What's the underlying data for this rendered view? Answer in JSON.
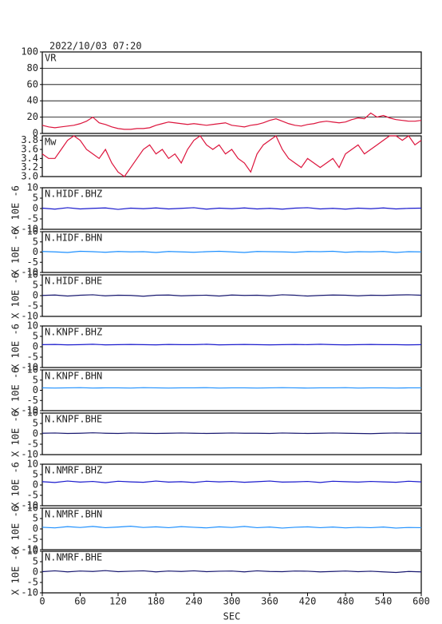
{
  "chart_data": [
    {
      "type": "line",
      "title": "2022/10/03 07:20",
      "x": [
        0,
        10,
        20,
        30,
        40,
        50,
        60,
        70,
        80,
        90,
        100,
        110,
        120,
        130,
        140,
        150,
        160,
        170,
        180,
        190,
        200,
        210,
        220,
        230,
        240,
        250,
        260,
        270,
        280,
        290,
        300,
        310,
        320,
        330,
        340,
        350,
        360,
        370,
        380,
        390,
        400,
        410,
        420,
        430,
        440,
        450,
        460,
        470,
        480,
        490,
        500,
        510,
        520,
        530,
        540,
        550,
        560,
        570,
        580,
        590,
        600
      ],
      "series": [
        {
          "name": "VR",
          "color": "#dc143c",
          "values": [
            10,
            8,
            7,
            8,
            9,
            10,
            12,
            15,
            20,
            13,
            11,
            8,
            6,
            5,
            5,
            6,
            6,
            7,
            10,
            12,
            14,
            13,
            12,
            11,
            12,
            11,
            10,
            11,
            12,
            13,
            10,
            9,
            8,
            10,
            11,
            13,
            16,
            18,
            15,
            12,
            10,
            9,
            11,
            12,
            14,
            15,
            14,
            13,
            14,
            17,
            19,
            18,
            25,
            20,
            22,
            19,
            17,
            16,
            15,
            15,
            16
          ]
        }
      ],
      "xlim": [
        0,
        600
      ],
      "ylim": [
        0,
        100
      ],
      "yticks": [
        0,
        20,
        40,
        60,
        80,
        100
      ],
      "grid": true
    },
    {
      "type": "line",
      "x": [
        0,
        10,
        20,
        30,
        40,
        50,
        60,
        70,
        80,
        90,
        100,
        110,
        120,
        130,
        140,
        150,
        160,
        170,
        180,
        190,
        200,
        210,
        220,
        230,
        240,
        250,
        260,
        270,
        280,
        290,
        300,
        310,
        320,
        330,
        340,
        350,
        360,
        370,
        380,
        390,
        400,
        410,
        420,
        430,
        440,
        450,
        460,
        470,
        480,
        490,
        500,
        510,
        520,
        530,
        540,
        550,
        560,
        570,
        580,
        590,
        600
      ],
      "series": [
        {
          "name": "Mw",
          "color": "#dc143c",
          "values": [
            3.5,
            3.4,
            3.4,
            3.6,
            3.8,
            3.9,
            3.8,
            3.6,
            3.5,
            3.4,
            3.6,
            3.3,
            3.1,
            3.0,
            3.2,
            3.4,
            3.6,
            3.7,
            3.5,
            3.6,
            3.4,
            3.5,
            3.3,
            3.6,
            3.8,
            3.9,
            3.7,
            3.6,
            3.7,
            3.5,
            3.6,
            3.4,
            3.3,
            3.1,
            3.5,
            3.7,
            3.8,
            3.9,
            3.6,
            3.4,
            3.3,
            3.2,
            3.4,
            3.3,
            3.2,
            3.3,
            3.4,
            3.2,
            3.5,
            3.6,
            3.7,
            3.5,
            3.6,
            3.7,
            3.8,
            3.9,
            3.9,
            3.8,
            3.9,
            3.7,
            3.8
          ]
        }
      ],
      "xlim": [
        0,
        600
      ],
      "ylim": [
        3.0,
        3.9
      ],
      "yticks": [
        {
          "value": 3,
          "label": "3.0"
        },
        3.2,
        3.4,
        3.6,
        3.8
      ]
    },
    {
      "type": "line",
      "ylabel": "X 10E -6",
      "x": [
        0,
        20,
        40,
        60,
        80,
        100,
        120,
        140,
        160,
        180,
        200,
        220,
        240,
        260,
        280,
        300,
        320,
        340,
        360,
        380,
        400,
        420,
        440,
        460,
        480,
        500,
        520,
        540,
        560,
        580,
        600
      ],
      "series": [
        {
          "name": "N.HIDF.BHZ",
          "color": "#1a1acd",
          "values": [
            0.2,
            -0.3,
            0.4,
            -0.2,
            0.1,
            0.3,
            -0.4,
            0.2,
            -0.1,
            0.3,
            -0.2,
            0.1,
            0.4,
            -0.3,
            0.2,
            -0.1,
            0.3,
            -0.2,
            0.1,
            -0.3,
            0.2,
            0.4,
            -0.2,
            0.1,
            -0.3,
            0.2,
            -0.1,
            0.3,
            -0.2,
            0.1,
            0.2
          ]
        }
      ],
      "xlim": [
        0,
        600
      ],
      "ylim": [
        -10,
        10
      ],
      "yticks": [
        -10,
        -5,
        0,
        5,
        10
      ]
    },
    {
      "type": "line",
      "ylabel": "X 10E -6",
      "x": [
        0,
        20,
        40,
        60,
        80,
        100,
        120,
        140,
        160,
        180,
        200,
        220,
        240,
        260,
        280,
        300,
        320,
        340,
        360,
        380,
        400,
        420,
        440,
        460,
        480,
        500,
        520,
        540,
        560,
        580,
        600
      ],
      "series": [
        {
          "name": "N.HIDF.BHN",
          "color": "#1e90ff",
          "values": [
            0.3,
            0.1,
            -0.2,
            0.4,
            0.2,
            -0.1,
            0.3,
            0.1,
            0.2,
            -0.2,
            0.3,
            0.1,
            -0.1,
            0.2,
            0.4,
            0.1,
            -0.2,
            0.3,
            0.2,
            0.1,
            -0.1,
            0.3,
            0.2,
            0.4,
            -0.1,
            0.2,
            0.1,
            0.3,
            -0.2,
            0.2,
            0.1
          ]
        }
      ],
      "xlim": [
        0,
        600
      ],
      "ylim": [
        -10,
        10
      ],
      "yticks": [
        -10,
        -5,
        0,
        5,
        10
      ]
    },
    {
      "type": "line",
      "ylabel": "X 10E -6",
      "x": [
        0,
        20,
        40,
        60,
        80,
        100,
        120,
        140,
        160,
        180,
        200,
        220,
        240,
        260,
        280,
        300,
        320,
        340,
        360,
        380,
        400,
        420,
        440,
        460,
        480,
        500,
        520,
        540,
        560,
        580,
        600
      ],
      "series": [
        {
          "name": "N.HIDF.BHE",
          "color": "#191970",
          "values": [
            0.1,
            0.3,
            -0.2,
            0.2,
            0.4,
            -0.1,
            0.2,
            0.1,
            -0.3,
            0.2,
            0.3,
            -0.1,
            0.1,
            0.2,
            -0.2,
            0.3,
            0.1,
            0.2,
            -0.1,
            0.4,
            0.2,
            -0.2,
            0.1,
            0.3,
            0.2,
            -0.1,
            0.2,
            0.1,
            0.3,
            0.4,
            0.2
          ]
        }
      ],
      "xlim": [
        0,
        600
      ],
      "ylim": [
        -10,
        10
      ],
      "yticks": [
        -10,
        -5,
        0,
        5,
        10
      ]
    },
    {
      "type": "line",
      "ylabel": "X 10E -6",
      "x": [
        0,
        20,
        40,
        60,
        80,
        100,
        120,
        140,
        160,
        180,
        200,
        220,
        240,
        260,
        280,
        300,
        320,
        340,
        360,
        380,
        400,
        420,
        440,
        460,
        480,
        500,
        520,
        540,
        560,
        580,
        600
      ],
      "series": [
        {
          "name": "N.KNPF.BHZ",
          "color": "#1a1acd",
          "values": [
            1.0,
            1.1,
            0.9,
            1.0,
            1.2,
            0.9,
            1.0,
            1.1,
            1.0,
            0.9,
            1.1,
            1.0,
            1.0,
            1.2,
            0.9,
            1.0,
            1.1,
            1.0,
            0.9,
            1.0,
            1.1,
            1.0,
            1.2,
            1.0,
            0.9,
            1.0,
            1.1,
            1.0,
            1.0,
            0.9,
            1.0
          ]
        }
      ],
      "xlim": [
        0,
        600
      ],
      "ylim": [
        -10,
        10
      ],
      "yticks": [
        -10,
        -5,
        0,
        5,
        10
      ]
    },
    {
      "type": "line",
      "ylabel": "X 10E -6",
      "x": [
        0,
        20,
        40,
        60,
        80,
        100,
        120,
        140,
        160,
        180,
        200,
        220,
        240,
        260,
        280,
        300,
        320,
        340,
        360,
        380,
        400,
        420,
        440,
        460,
        480,
        500,
        520,
        540,
        560,
        580,
        600
      ],
      "series": [
        {
          "name": "N.KNPF.BHN",
          "color": "#1e90ff",
          "values": [
            1.2,
            1.1,
            1.2,
            1.3,
            1.1,
            1.2,
            1.2,
            1.1,
            1.3,
            1.2,
            1.1,
            1.2,
            1.2,
            1.3,
            1.1,
            1.2,
            1.2,
            1.1,
            1.2,
            1.3,
            1.2,
            1.1,
            1.2,
            1.2,
            1.3,
            1.1,
            1.2,
            1.2,
            1.1,
            1.2,
            1.2
          ]
        }
      ],
      "xlim": [
        0,
        600
      ],
      "ylim": [
        -10,
        10
      ],
      "yticks": [
        -10,
        -5,
        0,
        5,
        10
      ]
    },
    {
      "type": "line",
      "ylabel": "X 10E -6",
      "x": [
        0,
        20,
        40,
        60,
        80,
        100,
        120,
        140,
        160,
        180,
        200,
        220,
        240,
        260,
        280,
        300,
        320,
        340,
        360,
        380,
        400,
        420,
        440,
        460,
        480,
        500,
        520,
        540,
        560,
        580,
        600
      ],
      "series": [
        {
          "name": "N.KNPF.BHE",
          "color": "#191970",
          "values": [
            0.3,
            0.4,
            0.2,
            0.3,
            0.5,
            0.3,
            0.2,
            0.4,
            0.3,
            0.2,
            0.3,
            0.4,
            0.3,
            0.2,
            0.3,
            0.4,
            0.3,
            0.3,
            0.2,
            0.4,
            0.3,
            0.2,
            0.3,
            0.4,
            0.3,
            0.2,
            0.1,
            0.3,
            0.4,
            0.3,
            0.3
          ]
        }
      ],
      "xlim": [
        0,
        600
      ],
      "ylim": [
        -10,
        10
      ],
      "yticks": [
        -10,
        -5,
        0,
        5,
        10
      ]
    },
    {
      "type": "line",
      "ylabel": "X 10E -6",
      "x": [
        0,
        20,
        40,
        60,
        80,
        100,
        120,
        140,
        160,
        180,
        200,
        220,
        240,
        260,
        280,
        300,
        320,
        340,
        360,
        380,
        400,
        420,
        440,
        460,
        480,
        500,
        520,
        540,
        560,
        580,
        600
      ],
      "series": [
        {
          "name": "N.NMRF.BHZ",
          "color": "#1a1acd",
          "values": [
            1.6,
            1.2,
            1.9,
            1.4,
            1.7,
            1.1,
            1.8,
            1.5,
            1.3,
            1.9,
            1.4,
            1.6,
            1.2,
            1.8,
            1.5,
            1.7,
            1.3,
            1.6,
            1.9,
            1.4,
            1.5,
            1.7,
            1.2,
            1.8,
            1.6,
            1.4,
            1.7,
            1.5,
            1.3,
            1.8,
            1.5
          ]
        }
      ],
      "xlim": [
        0,
        600
      ],
      "ylim": [
        -10,
        10
      ],
      "yticks": [
        -10,
        -5,
        0,
        5,
        10
      ]
    },
    {
      "type": "line",
      "ylabel": "X 10E -6",
      "x": [
        0,
        20,
        40,
        60,
        80,
        100,
        120,
        140,
        160,
        180,
        200,
        220,
        240,
        260,
        280,
        300,
        320,
        340,
        360,
        380,
        400,
        420,
        440,
        460,
        480,
        500,
        520,
        540,
        560,
        580,
        600
      ],
      "series": [
        {
          "name": "N.NMRF.BHN",
          "color": "#1e90ff",
          "values": [
            0.8,
            0.5,
            1.1,
            0.7,
            1.2,
            0.6,
            0.9,
            1.3,
            0.7,
            1.0,
            0.6,
            1.1,
            0.8,
            0.5,
            1.0,
            0.7,
            1.2,
            0.6,
            0.9,
            0.4,
            0.8,
            1.0,
            0.6,
            0.9,
            0.5,
            0.8,
            0.6,
            0.9,
            0.4,
            0.7,
            0.6
          ]
        }
      ],
      "xlim": [
        0,
        600
      ],
      "ylim": [
        -10,
        10
      ],
      "yticks": [
        -10,
        -5,
        0,
        5,
        10
      ]
    },
    {
      "type": "line",
      "ylabel": "X 10E -6",
      "x": [
        0,
        20,
        40,
        60,
        80,
        100,
        120,
        140,
        160,
        180,
        200,
        220,
        240,
        260,
        280,
        300,
        320,
        340,
        360,
        380,
        400,
        420,
        440,
        460,
        480,
        500,
        520,
        540,
        560,
        580,
        600
      ],
      "series": [
        {
          "name": "N.NMRF.BHE",
          "color": "#191970",
          "values": [
            0.2,
            0.6,
            0.1,
            0.5,
            0.3,
            0.7,
            0.2,
            0.4,
            0.6,
            0.1,
            0.5,
            0.3,
            0.6,
            0.2,
            0.4,
            0.5,
            0.1,
            0.6,
            0.3,
            0.2,
            0.5,
            0.4,
            0.1,
            0.3,
            0.5,
            0.2,
            0.4,
            0.1,
            -0.2,
            0.3,
            0.1
          ]
        }
      ],
      "xlim": [
        0,
        600
      ],
      "ylim": [
        -10,
        10
      ],
      "yticks": [
        -10,
        -5,
        0,
        5,
        10
      ],
      "xticks": [
        0,
        60,
        120,
        180,
        240,
        300,
        360,
        420,
        480,
        540,
        600
      ],
      "xlabel": "SEC"
    }
  ]
}
